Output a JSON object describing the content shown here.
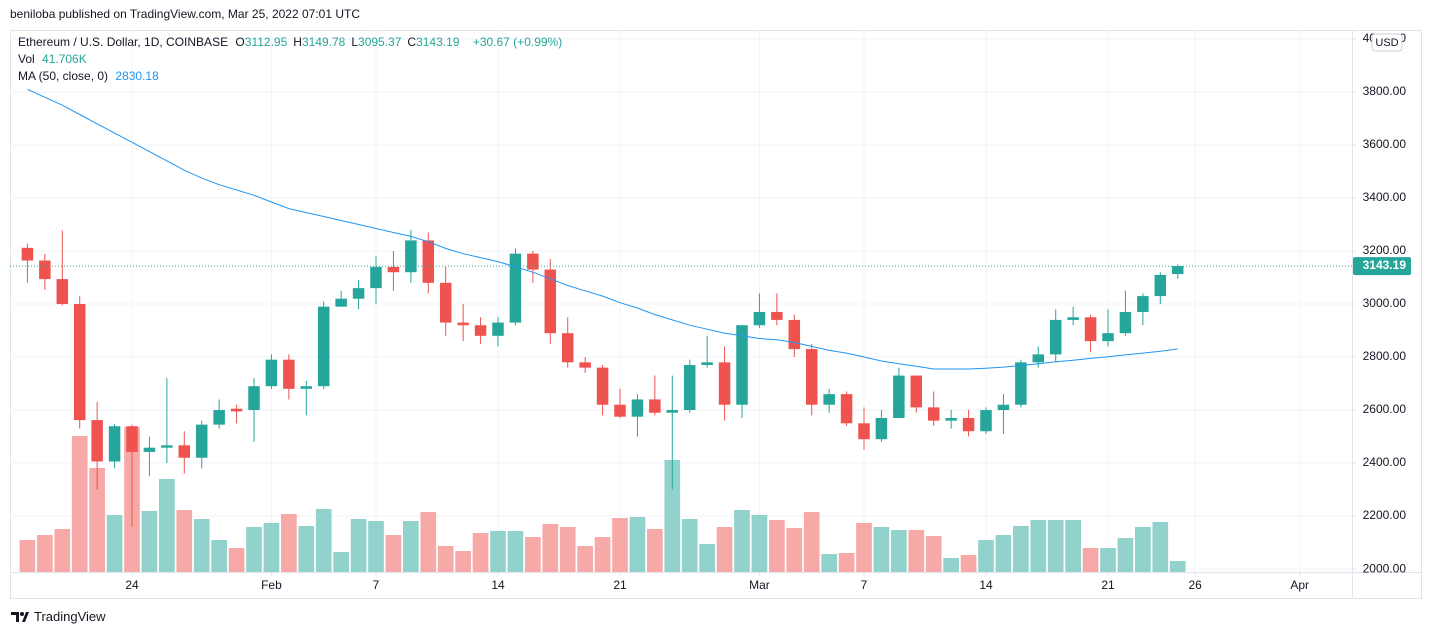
{
  "header": {
    "publisher": "beniloba published on TradingView.com, Mar 25, 2022 07:01 UTC"
  },
  "footer": {
    "brand": "TradingView"
  },
  "chart_data": {
    "type": "candlestick",
    "title": "Ethereum / U.S. Dollar, 1D, COINBASE",
    "ohlc_letters": [
      "O",
      "H",
      "L",
      "C"
    ],
    "change_label": "+30.67 (+0.99%)",
    "currency": "USD",
    "up_color": "#26a69a",
    "down_color": "#ef5350",
    "grid": true,
    "last_price_line": true,
    "x": [
      "2022-01-18",
      "2022-01-19",
      "2022-01-20",
      "2022-01-21",
      "2022-01-22",
      "2022-01-23",
      "2022-01-24",
      "2022-01-25",
      "2022-01-26",
      "2022-01-27",
      "2022-01-28",
      "2022-01-29",
      "2022-01-30",
      "2022-01-31",
      "2022-02-01",
      "2022-02-02",
      "2022-02-03",
      "2022-02-04",
      "2022-02-05",
      "2022-02-06",
      "2022-02-07",
      "2022-02-08",
      "2022-02-09",
      "2022-02-10",
      "2022-02-11",
      "2022-02-12",
      "2022-02-13",
      "2022-02-14",
      "2022-02-15",
      "2022-02-16",
      "2022-02-17",
      "2022-02-18",
      "2022-02-19",
      "2022-02-20",
      "2022-02-21",
      "2022-02-22",
      "2022-02-23",
      "2022-02-24",
      "2022-02-25",
      "2022-02-26",
      "2022-02-27",
      "2022-02-28",
      "2022-03-01",
      "2022-03-02",
      "2022-03-03",
      "2022-03-04",
      "2022-03-05",
      "2022-03-06",
      "2022-03-07",
      "2022-03-08",
      "2022-03-09",
      "2022-03-10",
      "2022-03-11",
      "2022-03-12",
      "2022-03-13",
      "2022-03-14",
      "2022-03-15",
      "2022-03-16",
      "2022-03-17",
      "2022-03-18",
      "2022-03-19",
      "2022-03-20",
      "2022-03-21",
      "2022-03-22",
      "2022-03-23",
      "2022-03-24",
      "2022-03-25"
    ],
    "open": [
      3212,
      3164,
      3094,
      3000,
      2562,
      2406,
      2539,
      2442,
      2458,
      2467,
      2420,
      2545,
      2605,
      2600,
      2690,
      2790,
      2680,
      2690,
      2990,
      3020,
      3060,
      3140,
      3120,
      3240,
      3080,
      2930,
      2920,
      2880,
      2930,
      3190,
      3130,
      2890,
      2780,
      2760,
      2620,
      2575,
      2640,
      2590,
      2600,
      2770,
      2780,
      2620,
      2920,
      2970,
      2940,
      2830,
      2620,
      2660,
      2550,
      2490,
      2570,
      2730,
      2610,
      2560,
      2570,
      2520,
      2600,
      2620,
      2780,
      2810,
      2940,
      2950,
      2860,
      2890,
      2970,
      3030,
      3112.95
    ],
    "high": [
      3228,
      3189,
      3277,
      3030,
      2630,
      2548,
      2545,
      2500,
      2720,
      2520,
      2560,
      2640,
      2620,
      2720,
      2810,
      2810,
      2710,
      3010,
      3050,
      3090,
      3180,
      3200,
      3280,
      3270,
      3140,
      3000,
      2950,
      2950,
      3210,
      3200,
      3170,
      2950,
      2800,
      2770,
      2680,
      2660,
      2730,
      2730,
      2790,
      2880,
      2840,
      2920,
      3040,
      3040,
      2960,
      2850,
      2680,
      2670,
      2610,
      2600,
      2760,
      2730,
      2670,
      2600,
      2600,
      2610,
      2660,
      2790,
      2840,
      2980,
      2990,
      2960,
      2980,
      3050,
      3040,
      3120,
      3149.78
    ],
    "low": [
      3080,
      3054,
      2995,
      2530,
      2300,
      2380,
      2160,
      2350,
      2400,
      2360,
      2380,
      2530,
      2550,
      2480,
      2680,
      2640,
      2580,
      2680,
      2990,
      2980,
      3000,
      3050,
      3080,
      3040,
      2880,
      2860,
      2850,
      2840,
      2920,
      3080,
      2850,
      2760,
      2740,
      2580,
      2570,
      2500,
      2580,
      2300,
      2590,
      2760,
      2560,
      2570,
      2910,
      2920,
      2800,
      2580,
      2590,
      2540,
      2450,
      2480,
      2570,
      2590,
      2540,
      2530,
      2500,
      2510,
      2510,
      2610,
      2760,
      2780,
      2920,
      2820,
      2840,
      2880,
      2920,
      3000,
      3095.37
    ],
    "close": [
      3164,
      3094,
      3000,
      2562,
      2406,
      2539,
      2442,
      2458,
      2467,
      2420,
      2545,
      2600,
      2595,
      2690,
      2790,
      2680,
      2690,
      2990,
      3020,
      3060,
      3140,
      3120,
      3240,
      3080,
      2930,
      2920,
      2880,
      2930,
      3190,
      3130,
      2890,
      2780,
      2760,
      2620,
      2575,
      2640,
      2590,
      2600,
      2770,
      2780,
      2620,
      2920,
      2970,
      2940,
      2830,
      2620,
      2660,
      2550,
      2490,
      2570,
      2730,
      2610,
      2560,
      2570,
      2520,
      2600,
      2620,
      2780,
      2810,
      2940,
      2950,
      2860,
      2890,
      2970,
      3030,
      3110,
      3143.19
    ],
    "volume": {
      "name": "Vol",
      "value_label": "41.706K",
      "up_color": "#92d2cc",
      "down_color": "#f7a9a7",
      "values": [
        121600,
        140600,
        163400,
        516800,
        395200,
        216600,
        551000,
        231800,
        353400,
        235600,
        201400,
        121600,
        91200,
        171000,
        186200,
        220400,
        174800,
        239400,
        76000,
        201400,
        193800,
        140600,
        193800,
        228000,
        98800,
        79800,
        148200,
        155800,
        155800,
        133000,
        182400,
        171000,
        98800,
        133000,
        205200,
        209000,
        163400,
        425600,
        201400,
        106400,
        171000,
        235600,
        216600,
        197600,
        167200,
        228000,
        68400,
        72200,
        186200,
        171000,
        159600,
        159600,
        136800,
        53200,
        64600,
        121600,
        140600,
        174800,
        197600,
        197600,
        197600,
        91200,
        91200,
        129200,
        171000,
        190000,
        41706
      ]
    },
    "ma": {
      "name": "MA (50, close, 0)",
      "color": "#2196f3",
      "values": [
        3810,
        3780,
        3750,
        3715,
        3680,
        3645,
        3610,
        3575,
        3540,
        3505,
        3475,
        3450,
        3430,
        3410,
        3385,
        3360,
        3345,
        3330,
        3315,
        3300,
        3285,
        3270,
        3255,
        3235,
        3210,
        3190,
        3175,
        3160,
        3140,
        3120,
        3095,
        3070,
        3050,
        3030,
        3005,
        2985,
        2960,
        2940,
        2920,
        2905,
        2890,
        2880,
        2870,
        2865,
        2855,
        2840,
        2825,
        2815,
        2800,
        2785,
        2775,
        2765,
        2755,
        2755,
        2755,
        2758,
        2762,
        2768,
        2775,
        2782,
        2788,
        2795,
        2801,
        2808,
        2815,
        2822,
        2830.18
      ]
    },
    "xlim": [
      "2022-01-17",
      "2022-04-04"
    ],
    "xticks": [
      {
        "value": "2022-01-24",
        "label": "24"
      },
      {
        "value": "2022-02-01",
        "label": "Feb"
      },
      {
        "value": "2022-02-07",
        "label": "7"
      },
      {
        "value": "2022-02-14",
        "label": "14"
      },
      {
        "value": "2022-02-21",
        "label": "21"
      },
      {
        "value": "2022-03-01",
        "label": "Mar"
      },
      {
        "value": "2022-03-07",
        "label": "7"
      },
      {
        "value": "2022-03-14",
        "label": "14"
      },
      {
        "value": "2022-03-21",
        "label": "21"
      },
      {
        "value": "2022-03-26",
        "label": "26"
      },
      {
        "value": "2022-04-01",
        "label": "Apr"
      }
    ],
    "ylim": [
      1989,
      4030
    ],
    "yticks": [
      {
        "value": 2000,
        "label": "2000.00"
      },
      {
        "value": 2200,
        "label": "2200.00"
      },
      {
        "value": 2400,
        "label": "2400.00"
      },
      {
        "value": 2600,
        "label": "2600.00"
      },
      {
        "value": 2800,
        "label": "2800.00"
      },
      {
        "value": 3000,
        "label": "3000.00"
      },
      {
        "value": 3200,
        "label": "3200.00"
      },
      {
        "value": 3400,
        "label": "3400.00"
      },
      {
        "value": 3600,
        "label": "3600.00"
      },
      {
        "value": 3800,
        "label": "3800.00"
      },
      {
        "value": 4000,
        "label": "4000.00"
      }
    ]
  }
}
